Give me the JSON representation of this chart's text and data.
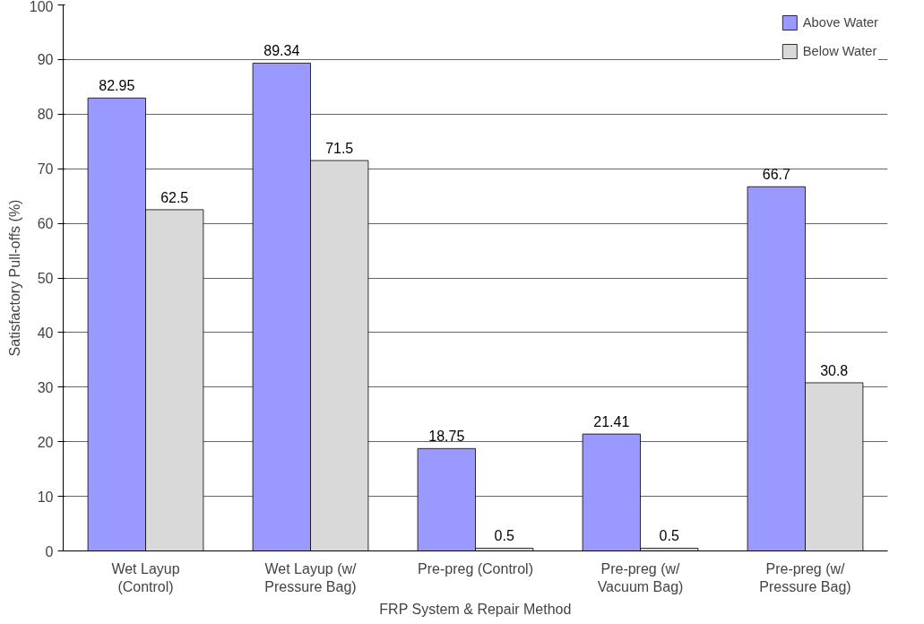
{
  "chart_data": {
    "type": "bar",
    "xlabel": "FRP System & Repair Method",
    "ylabel": "Satisfactory Pull-offs (%)",
    "categories": [
      "Wet Layup\n(Control)",
      "Wet Layup (w/\nPressure Bag)",
      "Pre-preg (Control)",
      "Pre-preg (w/\nVacuum Bag)",
      "Pre-preg (w/\nPressure Bag)"
    ],
    "series": [
      {
        "name": "Above Water",
        "color": "#9999ff",
        "values": [
          82.95,
          89.34,
          18.75,
          21.41,
          66.7
        ]
      },
      {
        "name": "Below Water",
        "color": "#d9d9d9",
        "values": [
          62.5,
          71.5,
          0.5,
          0.5,
          30.8
        ]
      }
    ],
    "ylim": [
      0,
      100
    ],
    "yticks": [
      0,
      10,
      20,
      30,
      40,
      50,
      60,
      70,
      80,
      90,
      100
    ],
    "grid": "y",
    "legend": "top right",
    "data_labels": true
  }
}
